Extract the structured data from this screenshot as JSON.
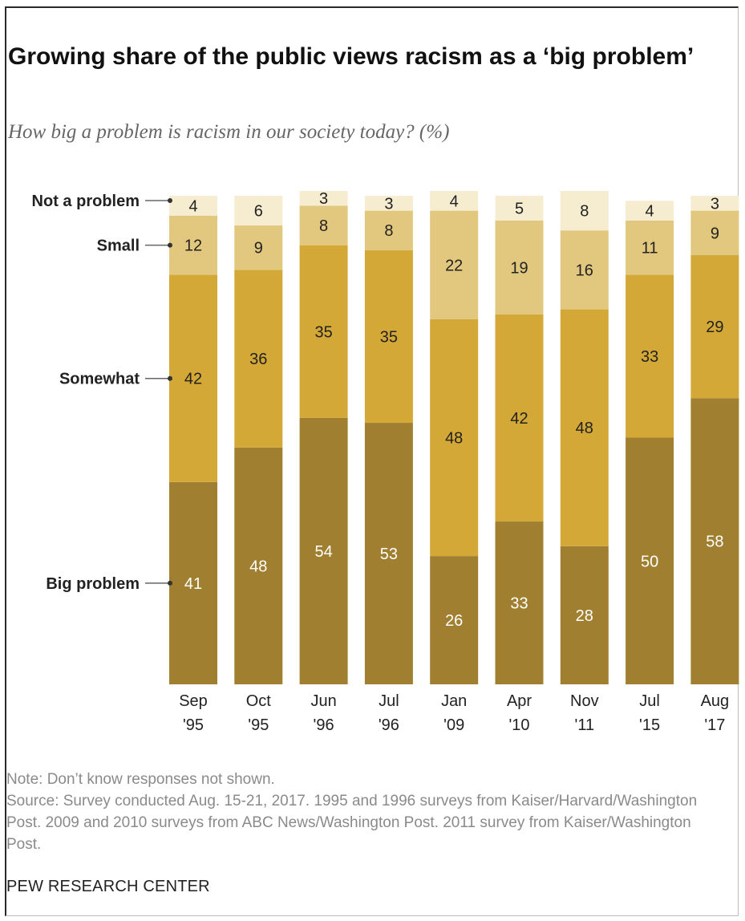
{
  "chart_data": {
    "type": "bar",
    "stacked": true,
    "title": "Growing share of the public views racism as a ‘big problem’",
    "subtitle": "How big a problem is racism in our society today? (%)",
    "categories": [
      [
        "Sep",
        "'95"
      ],
      [
        "Oct",
        "'95"
      ],
      [
        "Jun",
        "'96"
      ],
      [
        "Jul",
        "'96"
      ],
      [
        "Jan",
        "'09"
      ],
      [
        "Apr",
        "'10"
      ],
      [
        "Nov",
        "'11"
      ],
      [
        "Jul",
        "'15"
      ],
      [
        "Aug",
        "'17"
      ]
    ],
    "series": [
      {
        "name": "Big problem",
        "color": "#a08030",
        "label_color": "#ffffff",
        "values": [
          41,
          48,
          54,
          53,
          26,
          33,
          28,
          50,
          58
        ]
      },
      {
        "name": "Somewhat",
        "color": "#d4a837",
        "label_color": "#222222",
        "values": [
          42,
          36,
          35,
          35,
          48,
          42,
          48,
          33,
          29
        ]
      },
      {
        "name": "Small",
        "color": "#e2c87e",
        "label_color": "#222222",
        "values": [
          12,
          9,
          8,
          8,
          22,
          19,
          16,
          11,
          9
        ]
      },
      {
        "name": "Not a problem",
        "color": "#f6ecd0",
        "label_color": "#222222",
        "values": [
          4,
          6,
          3,
          3,
          4,
          5,
          8,
          4,
          3
        ]
      }
    ],
    "ylim": [
      0,
      100
    ]
  },
  "notes": {
    "note": "Note: Don’t know responses not shown.",
    "source": "Source: Survey conducted Aug. 15-21, 2017. 1995 and 1996 surveys from Kaiser/Harvard/Washington Post. 2009 and 2010 surveys from ABC News/Washington Post. 2011 survey from Kaiser/Washington Post."
  },
  "brand": "PEW RESEARCH CENTER"
}
